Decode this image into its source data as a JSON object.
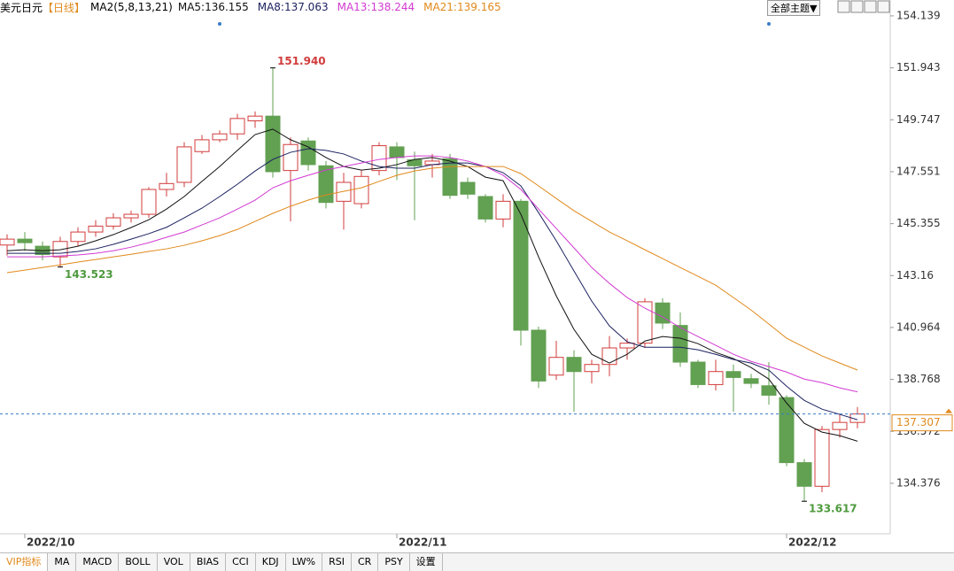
{
  "header": {
    "symbol": "美元日元",
    "period": "【日线】",
    "indicator": "MA2(5,8,13,21)",
    "theme_button": "全部主题▼"
  },
  "chart_data": {
    "type": "candlestick",
    "categories": [
      null,
      "2022/10",
      null,
      null,
      null,
      null,
      null,
      null,
      null,
      null,
      null,
      null,
      null,
      null,
      null,
      null,
      null,
      null,
      null,
      null,
      null,
      null,
      "2022/11",
      null,
      null,
      null,
      null,
      null,
      null,
      null,
      null,
      null,
      null,
      null,
      null,
      null,
      null,
      null,
      null,
      null,
      null,
      null,
      null,
      null,
      "2022/12",
      null,
      null,
      null,
      null
    ],
    "open": [
      144.45,
      144.7,
      144.4,
      143.95,
      144.6,
      145.0,
      145.25,
      145.6,
      145.75,
      146.8,
      147.1,
      148.4,
      148.9,
      149.15,
      149.7,
      149.9,
      147.6,
      148.85,
      147.8,
      146.3,
      146.2,
      147.6,
      148.6,
      148.05,
      147.85,
      148.1,
      147.1,
      146.5,
      145.55,
      146.3,
      140.85,
      138.95,
      139.7,
      139.1,
      139.4,
      140.1,
      140.3,
      142.0,
      141.05,
      139.5,
      138.55,
      139.1,
      138.8,
      138.5,
      138.0,
      135.25,
      134.25,
      136.65,
      136.95
    ],
    "high": [
      144.9,
      145.0,
      144.6,
      144.8,
      145.2,
      145.5,
      145.8,
      145.9,
      146.9,
      147.5,
      148.8,
      149.1,
      149.3,
      150.0,
      150.1,
      151.94,
      149.0,
      149.0,
      148.0,
      147.5,
      147.6,
      148.8,
      148.8,
      148.4,
      148.3,
      148.3,
      147.3,
      146.6,
      146.6,
      146.4,
      141.0,
      140.4,
      140.0,
      139.6,
      140.6,
      140.5,
      142.2,
      142.2,
      141.6,
      139.6,
      139.6,
      139.4,
      139.0,
      139.5,
      138.1,
      135.4,
      136.8,
      137.3,
      137.6
    ],
    "low": [
      144.0,
      144.2,
      143.8,
      143.523,
      144.4,
      144.8,
      145.1,
      145.4,
      145.6,
      146.5,
      146.9,
      148.3,
      148.8,
      148.9,
      149.4,
      147.3,
      145.45,
      147.6,
      146.0,
      145.1,
      146.0,
      147.4,
      147.2,
      145.5,
      147.3,
      146.4,
      146.4,
      145.4,
      145.2,
      140.2,
      138.4,
      138.75,
      137.4,
      138.6,
      138.9,
      139.6,
      140.1,
      140.9,
      139.3,
      138.4,
      138.3,
      137.4,
      138.4,
      137.7,
      135.1,
      133.617,
      134.0,
      136.3,
      136.7
    ],
    "close": [
      144.7,
      144.55,
      144.05,
      144.6,
      145.0,
      145.25,
      145.6,
      145.75,
      146.8,
      147.05,
      148.6,
      148.9,
      149.15,
      149.8,
      149.9,
      147.55,
      148.7,
      147.85,
      146.25,
      147.1,
      147.35,
      148.65,
      148.15,
      147.8,
      148.0,
      146.55,
      146.6,
      145.55,
      146.3,
      140.85,
      138.7,
      139.7,
      139.1,
      139.4,
      140.1,
      140.3,
      142.05,
      141.15,
      139.5,
      138.55,
      139.1,
      138.85,
      138.6,
      138.1,
      135.25,
      134.25,
      136.65,
      136.95,
      137.307
    ],
    "up_color": "#d23c3c",
    "down_color": "#62a052",
    "series": [
      {
        "name": "MA5",
        "legend": "MA5:136.155",
        "color": "#111111",
        "values": [
          144.21,
          144.25,
          144.21,
          144.25,
          144.4,
          144.63,
          144.89,
          145.19,
          145.52,
          145.97,
          146.5,
          147.14,
          147.77,
          148.45,
          149.12,
          149.35,
          148.9,
          148.6,
          148.15,
          147.77,
          147.62,
          147.7,
          147.85,
          148.07,
          148.15,
          148.0,
          147.77,
          147.32,
          147.17,
          145.75,
          143.95,
          142.3,
          140.88,
          139.83,
          139.46,
          139.83,
          140.39,
          140.58,
          140.51,
          140.28,
          139.91,
          139.65,
          139.27,
          138.78,
          137.77,
          136.91,
          136.54,
          136.39,
          136.155
        ]
      },
      {
        "name": "MA8",
        "legend": "MA8:137.063",
        "color": "#1c2260",
        "values": [
          144.1,
          144.1,
          144.1,
          144.1,
          144.18,
          144.29,
          144.48,
          144.7,
          144.93,
          145.2,
          145.6,
          146.01,
          146.5,
          147.02,
          147.58,
          148.07,
          148.37,
          148.52,
          148.45,
          148.3,
          148.0,
          147.77,
          147.7,
          147.7,
          147.85,
          147.92,
          147.92,
          147.77,
          147.51,
          146.95,
          145.82,
          144.63,
          143.35,
          142.08,
          141.03,
          140.36,
          140.13,
          140.13,
          140.13,
          140.02,
          139.83,
          139.61,
          139.46,
          139.16,
          138.48,
          137.88,
          137.51,
          137.29,
          137.063
        ]
      },
      {
        "name": "MA13",
        "legend": "MA13:138.244",
        "color": "#d23ad2",
        "values": [
          143.95,
          143.95,
          143.95,
          143.99,
          144.03,
          144.1,
          144.21,
          144.36,
          144.55,
          144.78,
          145.0,
          145.3,
          145.6,
          145.97,
          146.35,
          146.87,
          147.17,
          147.4,
          147.62,
          147.77,
          147.92,
          148.07,
          148.15,
          148.22,
          148.22,
          148.15,
          148.0,
          147.77,
          147.4,
          146.8,
          145.97,
          145.15,
          144.33,
          143.5,
          142.83,
          142.23,
          141.78,
          141.41,
          140.96,
          140.58,
          140.21,
          139.83,
          139.53,
          139.31,
          139.08,
          138.78,
          138.63,
          138.41,
          138.244
        ]
      },
      {
        "name": "MA21",
        "legend": "MA21:139.165",
        "color": "#e0891c",
        "values": [
          143.28,
          143.39,
          143.5,
          143.61,
          143.73,
          143.84,
          143.95,
          144.06,
          144.18,
          144.29,
          144.44,
          144.63,
          144.85,
          145.11,
          145.45,
          145.79,
          146.09,
          146.35,
          146.57,
          146.72,
          146.87,
          147.14,
          147.4,
          147.58,
          147.7,
          147.77,
          147.77,
          147.77,
          147.77,
          147.47,
          146.95,
          146.42,
          145.9,
          145.45,
          145.0,
          144.63,
          144.25,
          143.88,
          143.5,
          143.13,
          142.75,
          142.23,
          141.7,
          141.11,
          140.51,
          140.13,
          139.76,
          139.46,
          139.165
        ]
      }
    ],
    "ylim": [
      132.24,
      154.81
    ],
    "yticks": [
      134.376,
      136.572,
      138.768,
      140.964,
      143.16,
      145.355,
      147.551,
      149.747,
      151.943,
      154.139
    ],
    "annotations": [
      {
        "value": 151.94,
        "label": "151.940"
      },
      {
        "value": 143.523,
        "label": "143.523"
      },
      {
        "value": 133.617,
        "label": "133.617"
      }
    ],
    "last_price": {
      "value": 137.307,
      "label": "137.307"
    }
  },
  "tabs": [
    "VIP指标",
    "MA",
    "MACD",
    "BOLL",
    "VOL",
    "BIAS",
    "CCI",
    "KDJ",
    "LW%",
    "RSI",
    "CR",
    "PSY",
    "设置"
  ]
}
